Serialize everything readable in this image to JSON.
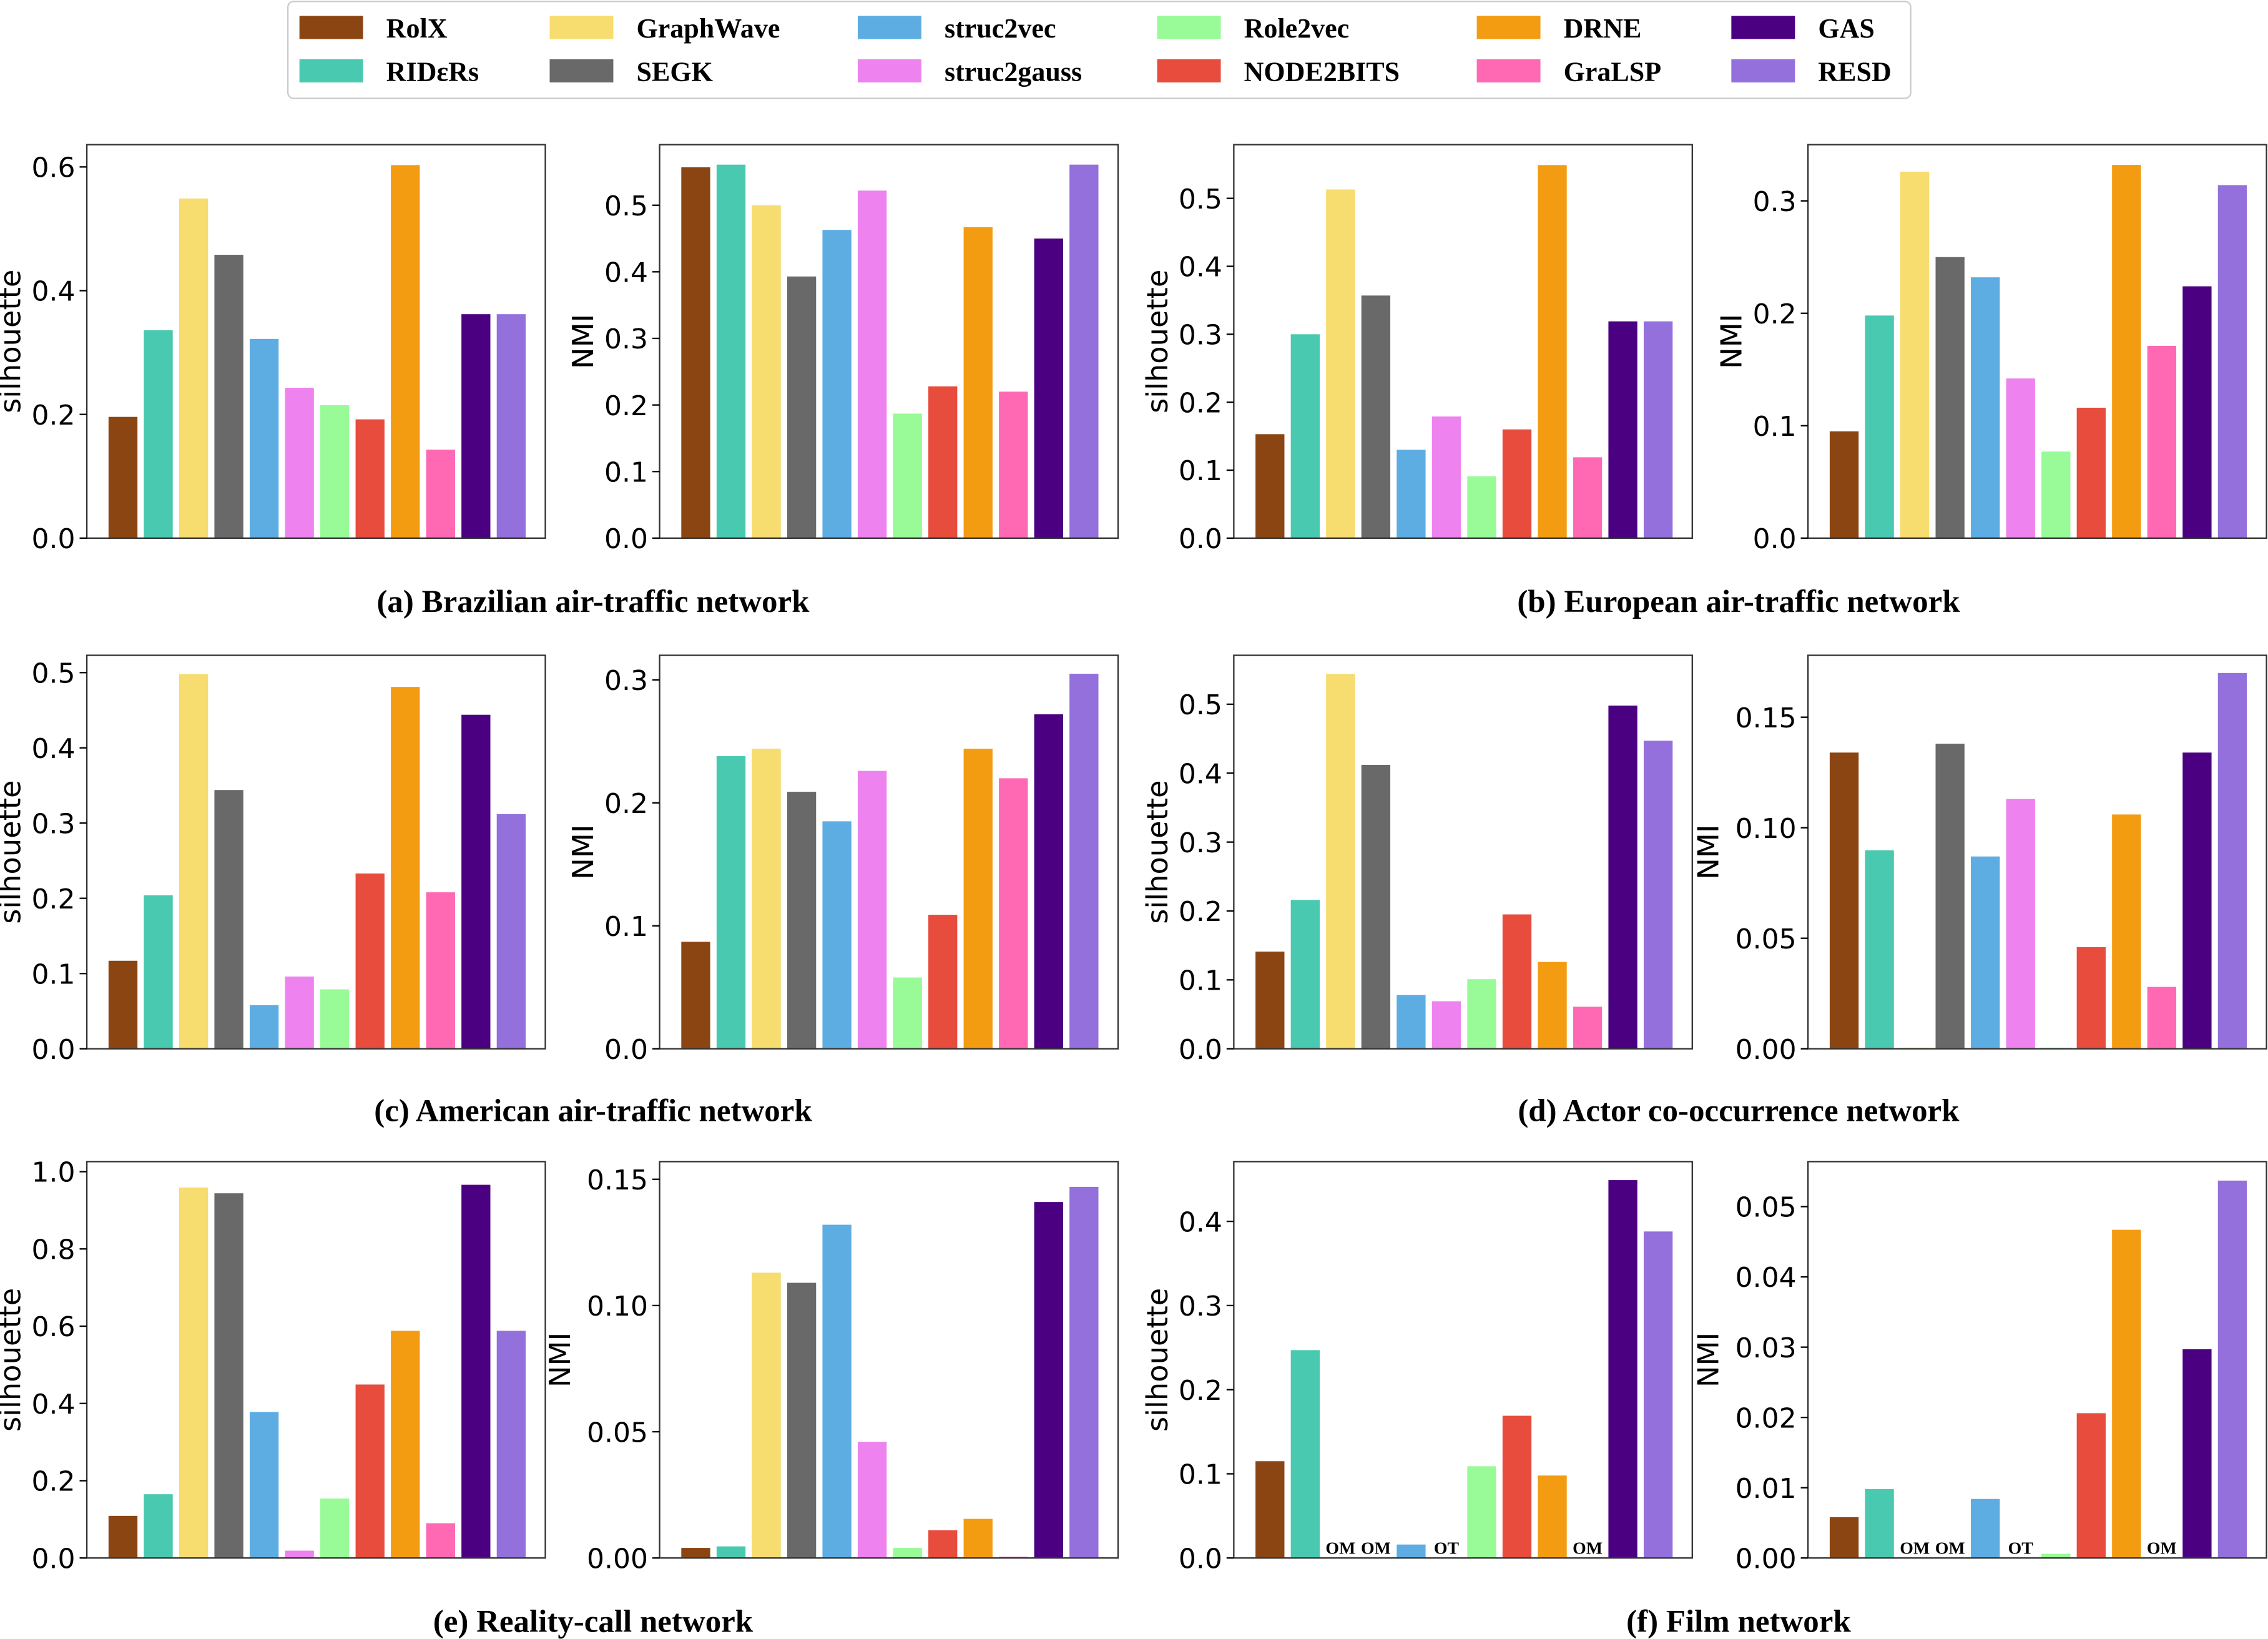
{
  "legend": [
    {
      "name": "RolX",
      "color": "#8B4513"
    },
    {
      "name": "RIDεRs",
      "color": "#48C9B0"
    },
    {
      "name": "GraphWave",
      "color": "#F7DC6F"
    },
    {
      "name": "SEGK",
      "color": "#696969"
    },
    {
      "name": "struc2vec",
      "color": "#5DADE2"
    },
    {
      "name": "struc2gauss",
      "color": "#EE82EE"
    },
    {
      "name": "Role2vec",
      "color": "#98FB98"
    },
    {
      "name": "NODE2BITS",
      "color": "#E74C3C"
    },
    {
      "name": "DRNE",
      "color": "#F39C12"
    },
    {
      "name": "GraLSP",
      "color": "#FF69B4"
    },
    {
      "name": "GAS",
      "color": "#4B0082"
    },
    {
      "name": "RESD",
      "color": "#9370DB"
    }
  ],
  "captions": [
    "(a) Brazilian air-traffic network",
    "(b) European air-traffic network",
    "(c) American air-traffic network",
    "(d) Actor co-occurrence network",
    "(e) Reality-call network",
    "(f) Film network"
  ],
  "chart_data": [
    {
      "type": "bar",
      "panel": "a",
      "ylabel": "silhouette",
      "ylim": [
        0,
        0.636
      ],
      "yticks": [
        "0.0",
        "0.2",
        "0.4",
        "0.6"
      ],
      "values": [
        0.196,
        0.336,
        0.549,
        0.458,
        0.322,
        0.243,
        0.215,
        0.192,
        0.603,
        0.143,
        0.362,
        0.362
      ],
      "annotations": []
    },
    {
      "type": "bar",
      "panel": "a",
      "ylabel": "NMI",
      "ylim": [
        0,
        0.591
      ],
      "yticks": [
        "0.0",
        "0.1",
        "0.2",
        "0.3",
        "0.4",
        "0.5"
      ],
      "values": [
        0.557,
        0.561,
        0.5,
        0.393,
        0.463,
        0.522,
        0.187,
        0.228,
        0.467,
        0.22,
        0.45,
        0.561
      ],
      "annotations": []
    },
    {
      "type": "bar",
      "panel": "b",
      "ylabel": "silhouette",
      "ylim": [
        0,
        0.579
      ],
      "yticks": [
        "0.0",
        "0.1",
        "0.2",
        "0.3",
        "0.4",
        "0.5"
      ],
      "values": [
        0.153,
        0.3,
        0.513,
        0.357,
        0.13,
        0.179,
        0.091,
        0.16,
        0.549,
        0.119,
        0.319,
        0.319
      ],
      "annotations": []
    },
    {
      "type": "bar",
      "panel": "b",
      "ylabel": "NMI",
      "ylim": [
        0,
        0.35
      ],
      "yticks": [
        "0.0",
        "0.1",
        "0.2",
        "0.3"
      ],
      "values": [
        0.095,
        0.198,
        0.326,
        0.25,
        0.232,
        0.142,
        0.077,
        0.116,
        0.332,
        0.171,
        0.224,
        0.314
      ],
      "annotations": []
    },
    {
      "type": "bar",
      "panel": "c",
      "ylabel": "silhouette",
      "ylim": [
        0,
        0.523
      ],
      "yticks": [
        "0.0",
        "0.1",
        "0.2",
        "0.3",
        "0.4",
        "0.5"
      ],
      "values": [
        0.117,
        0.204,
        0.498,
        0.344,
        0.058,
        0.096,
        0.079,
        0.233,
        0.481,
        0.208,
        0.444,
        0.312
      ],
      "annotations": []
    },
    {
      "type": "bar",
      "panel": "c",
      "ylabel": "NMI",
      "ylim": [
        0,
        0.32
      ],
      "yticks": [
        "0.0",
        "0.1",
        "0.2",
        "0.3"
      ],
      "values": [
        0.087,
        0.238,
        0.244,
        0.209,
        0.185,
        0.226,
        0.058,
        0.109,
        0.244,
        0.22,
        0.272,
        0.305
      ],
      "annotations": []
    },
    {
      "type": "bar",
      "panel": "d",
      "ylabel": "silhouette",
      "ylim": [
        0,
        0.571
      ],
      "yticks": [
        "0.0",
        "0.1",
        "0.2",
        "0.3",
        "0.4",
        "0.5"
      ],
      "values": [
        0.141,
        0.216,
        0.544,
        0.412,
        0.078,
        0.069,
        0.101,
        0.195,
        0.126,
        0.061,
        0.498,
        0.447
      ],
      "annotations": []
    },
    {
      "type": "bar",
      "panel": "d",
      "ylabel": "NMI",
      "ylim": [
        0,
        0.178
      ],
      "yticks": [
        "0.00",
        "0.05",
        "0.10",
        "0.15"
      ],
      "values": [
        0.134,
        0.0898,
        0.0005,
        0.138,
        0.087,
        0.113,
        0.0005,
        0.046,
        0.106,
        0.028,
        0.134,
        0.17
      ],
      "annotations": []
    },
    {
      "type": "bar",
      "panel": "e",
      "ylabel": "silhouette",
      "ylim": [
        0,
        1.026
      ],
      "yticks": [
        "0.0",
        "0.2",
        "0.4",
        "0.6",
        "0.8",
        "1.0"
      ],
      "values": [
        0.109,
        0.165,
        0.959,
        0.944,
        0.378,
        0.019,
        0.154,
        0.449,
        0.588,
        0.09,
        0.966,
        0.588
      ],
      "annotations": []
    },
    {
      "type": "bar",
      "panel": "e",
      "ylabel": "NMI",
      "ylim": [
        0,
        0.157
      ],
      "yticks": [
        "0.00",
        "0.05",
        "0.10",
        "0.15"
      ],
      "values": [
        0.004,
        0.0046,
        0.113,
        0.109,
        0.132,
        0.046,
        0.004,
        0.011,
        0.0155,
        0.0005,
        0.141,
        0.147
      ],
      "annotations": []
    },
    {
      "type": "bar",
      "panel": "f",
      "ylabel": "silhouette",
      "ylim": [
        0,
        0.471
      ],
      "yticks": [
        "0.0",
        "0.1",
        "0.2",
        "0.3",
        "0.4"
      ],
      "values": [
        0.115,
        0.247,
        0,
        0,
        0.016,
        0,
        0.109,
        0.169,
        0.098,
        0,
        0.449,
        0.388
      ],
      "annotations": [
        {
          "bar": 2,
          "text": "OM"
        },
        {
          "bar": 3,
          "text": "OM"
        },
        {
          "bar": 5,
          "text": "OT"
        },
        {
          "bar": 9,
          "text": "OM"
        }
      ]
    },
    {
      "type": "bar",
      "panel": "f",
      "ylabel": "NMI",
      "ylim": [
        0,
        0.0564
      ],
      "yticks": [
        "0.00",
        "0.01",
        "0.02",
        "0.03",
        "0.04",
        "0.05"
      ],
      "values": [
        0.0058,
        0.0098,
        0,
        0,
        0.0084,
        0,
        0.0006,
        0.0206,
        0.0467,
        0,
        0.0297,
        0.0537
      ],
      "annotations": [
        {
          "bar": 2,
          "text": "OM"
        },
        {
          "bar": 3,
          "text": "OM"
        },
        {
          "bar": 5,
          "text": "OT"
        },
        {
          "bar": 9,
          "text": "OM"
        }
      ]
    }
  ]
}
